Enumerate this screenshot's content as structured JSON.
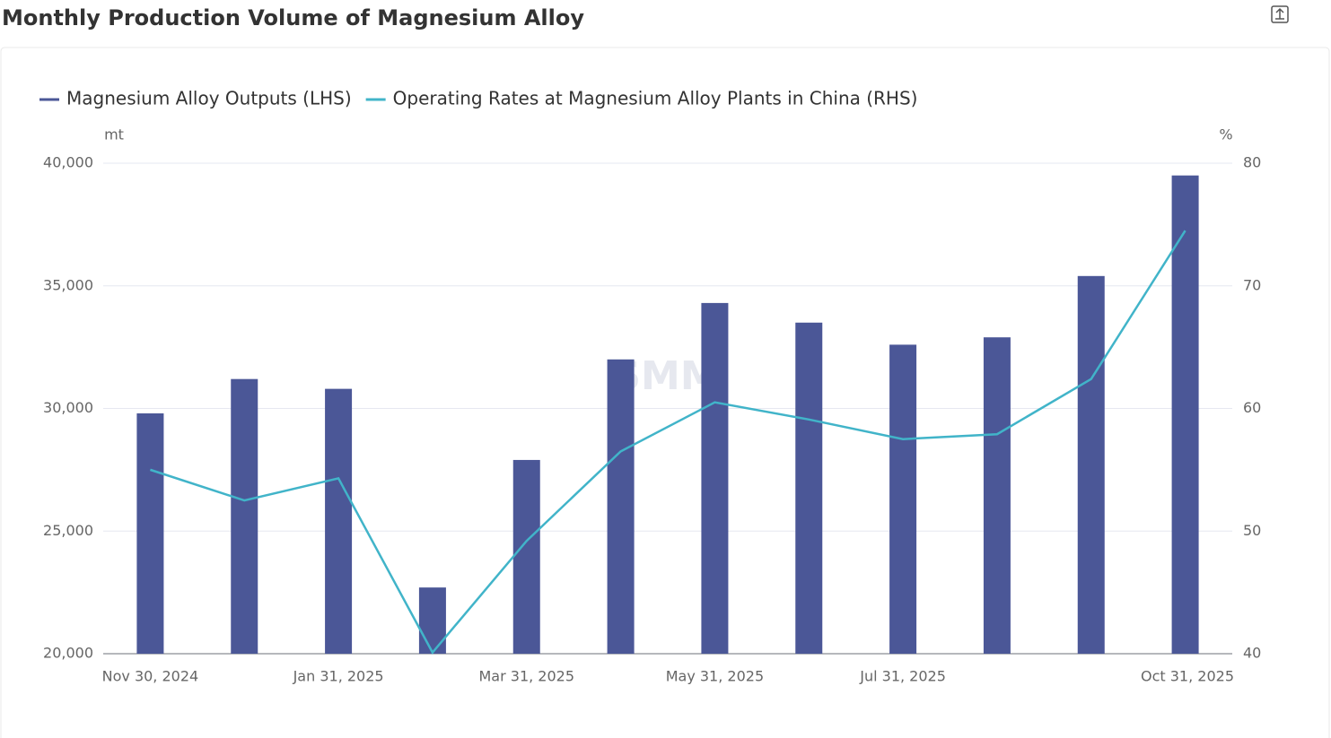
{
  "chart_data": {
    "type": "bar-line",
    "title": "Monthly Production Volume of Magnesium Alloy",
    "watermark": "SMM",
    "y_unit": "mt",
    "y2_unit": "%",
    "categories": [
      "Nov 30, 2024",
      null,
      "Jan 31, 2025",
      null,
      "Mar 31, 2025",
      null,
      "May 31, 2025",
      null,
      "Jul 31, 2025",
      null,
      null,
      "Oct 31, 2025"
    ],
    "series": [
      {
        "name": "Magnesium Alloy Outputs (LHS)",
        "type": "bar",
        "color": "#4b5797",
        "values": [
          29800,
          31200,
          30800,
          22700,
          27900,
          32000,
          34300,
          33500,
          32600,
          32900,
          35400,
          39500
        ]
      },
      {
        "name": "Operating Rates at Magnesium Alloy Plants in China (RHS)",
        "type": "line",
        "color": "#41b4c9",
        "axis": "y2",
        "values": [
          55.0,
          52.5,
          54.3,
          40.1,
          49.2,
          56.5,
          60.5,
          59.1,
          57.5,
          57.9,
          62.4,
          74.5
        ]
      }
    ],
    "ylim": [
      20000,
      40000
    ],
    "yticks": [
      {
        "value": 20000,
        "label": "20,000"
      },
      {
        "value": 25000,
        "label": "25,000"
      },
      {
        "value": 30000,
        "label": "30,000"
      },
      {
        "value": 35000,
        "label": "35,000"
      },
      {
        "value": 40000,
        "label": "40,000"
      }
    ],
    "y2lim": [
      40,
      80
    ],
    "y2ticks": [
      40,
      50,
      60,
      70,
      80
    ],
    "grid": true
  }
}
